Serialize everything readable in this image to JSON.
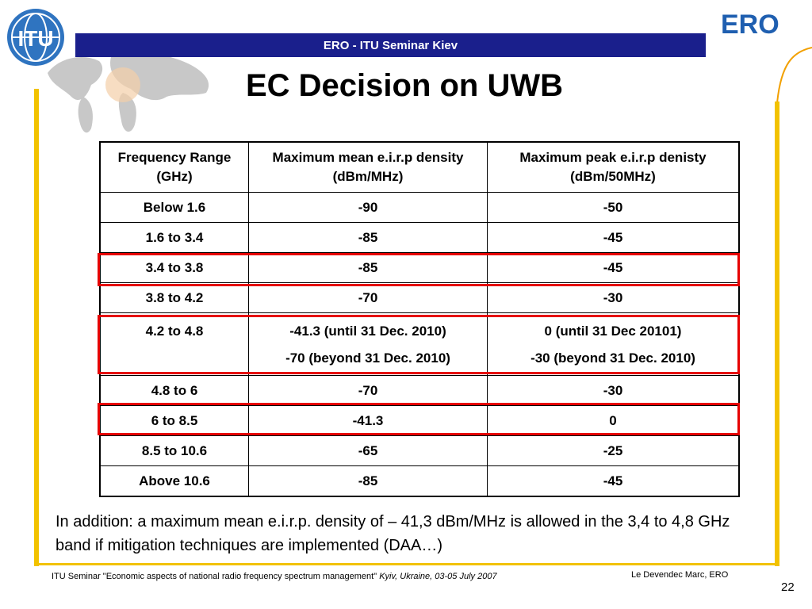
{
  "header": {
    "title": "ERO - ITU Seminar Kiev"
  },
  "logos": {
    "left": "ITU",
    "right": "ERO"
  },
  "slide": {
    "title": "EC Decision on UWB"
  },
  "table": {
    "headers": [
      "Frequency Range (GHz)",
      "Maximum mean e.i.r.p density (dBm/MHz)",
      "Maximum peak e.i.r.p denisty (dBm/50MHz)"
    ],
    "rows": [
      [
        "Below 1.6",
        "-90",
        "-50"
      ],
      [
        "1.6 to 3.4",
        "-85",
        "-45"
      ],
      [
        "3.4 to 3.8",
        "-85",
        "-45"
      ],
      [
        "3.8 to 4.2",
        "-70",
        "-30"
      ],
      [
        "4.2 to 4.8",
        "-41.3 (until 31 Dec. 2010)",
        "0 (until 31 Dec 20101)"
      ],
      [
        "",
        "-70 (beyond 31 Dec. 2010)",
        "-30 (beyond 31 Dec. 2010)"
      ],
      [
        "4.8 to 6",
        "-70",
        "-30"
      ],
      [
        "6 to 8.5",
        "-41.3",
        "0"
      ],
      [
        "8.5 to 10.6",
        "-65",
        "-25"
      ],
      [
        "Above 10.6",
        "-85",
        "-45"
      ]
    ]
  },
  "note": "In addition:  a maximum mean e.i.r.p. density of – 41,3 dBm/MHz is allowed in the 3,4 to 4,8 GHz band if mitigation techniques are implemented (DAA…)",
  "footer": {
    "left_main": "ITU Seminar  \"Economic aspects of national radio frequency spectrum management\"",
    "left_italic": "Kyiv, Ukraine, 03-05 July 2007",
    "right": "Le Devendec Marc, ERO",
    "page": "22"
  },
  "colors": {
    "header_bar": "#1a1f8c",
    "frame": "#f2c200",
    "highlight": "#e60000",
    "ero_blue": "#1f5fb0"
  }
}
